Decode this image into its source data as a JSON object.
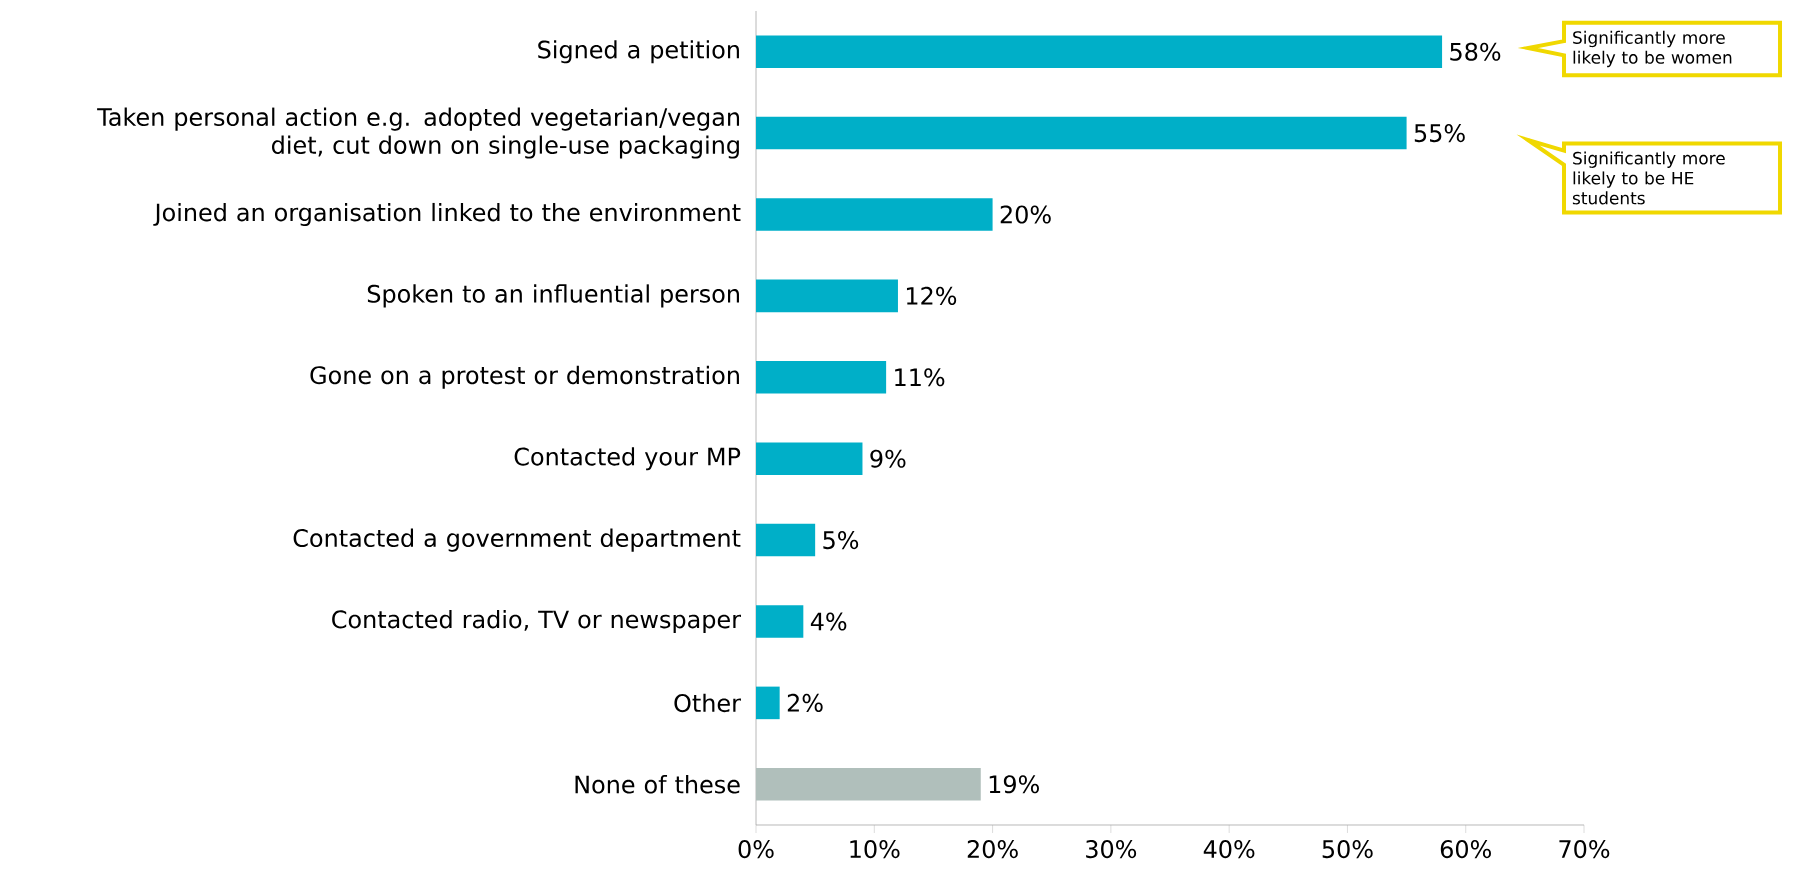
{
  "chart_data": {
    "type": "bar",
    "orientation": "horizontal",
    "categories": [
      "Signed a petition",
      "Taken personal action e.g. adopted vegetarian/vegan diet, cut down on single-use packaging",
      "Joined an organisation linked to the environment",
      "Spoken to an influential person",
      "Gone on a protest or demonstration",
      "Contacted your MP",
      "Contacted a government department",
      "Contacted radio, TV or newspaper",
      "Other",
      "None of these"
    ],
    "values": [
      58,
      55,
      20,
      12,
      11,
      9,
      5,
      4,
      2,
      19
    ],
    "value_labels": [
      "58%",
      "55%",
      "20%",
      "12%",
      "11%",
      "9%",
      "5%",
      "4%",
      "2%",
      "19%"
    ],
    "colors": [
      "#00afc8",
      "#00afc8",
      "#00afc8",
      "#00afc8",
      "#00afc8",
      "#00afc8",
      "#00afc8",
      "#00afc8",
      "#00afc8",
      "#b0bfbb"
    ],
    "xlim": [
      0,
      70
    ],
    "xticks": [
      {
        "value": 0,
        "label": "0%"
      },
      {
        "value": 10,
        "label": "10%"
      },
      {
        "value": 20,
        "label": "20%"
      },
      {
        "value": 30,
        "label": "30%"
      },
      {
        "value": 40,
        "label": "40%"
      },
      {
        "value": 50,
        "label": "50%"
      },
      {
        "value": 60,
        "label": "60%"
      },
      {
        "value": 70,
        "label": "70%"
      }
    ],
    "annotations": [
      "Significantly more likely to be women",
      "Significantly more likely to be HE students"
    ]
  }
}
